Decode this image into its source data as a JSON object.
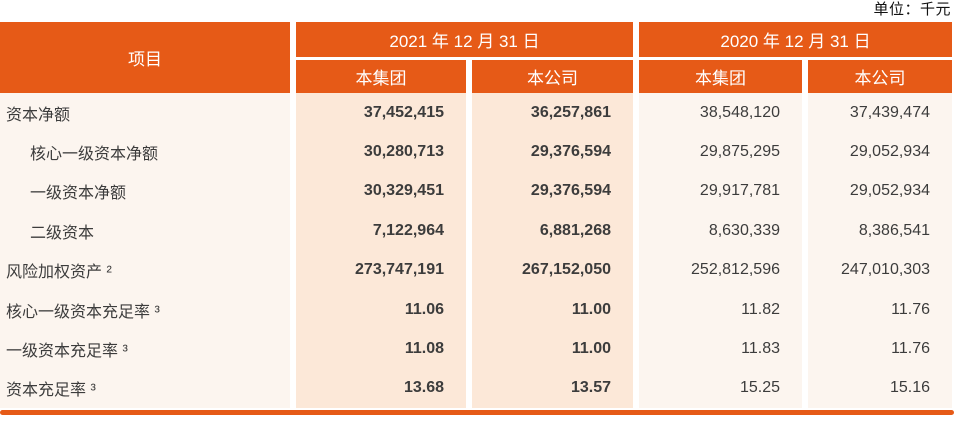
{
  "unit_label": "单位：千元",
  "table": {
    "item_header": "项目",
    "col_groups": [
      {
        "label": "2021 年 12 月 31 日",
        "sub": [
          "本集团",
          "本公司"
        ]
      },
      {
        "label": "2020 年 12 月 31 日",
        "sub": [
          "本集团",
          "本公司"
        ]
      }
    ],
    "rows": [
      {
        "label": "资本净额",
        "values": [
          "37,452,415",
          "36,257,861",
          "38,548,120",
          "37,439,474"
        ]
      },
      {
        "label": "核心一级资本净额",
        "values": [
          "30,280,713",
          "29,376,594",
          "29,875,295",
          "29,052,934"
        ]
      },
      {
        "label": "一级资本净额",
        "values": [
          "30,329,451",
          "29,376,594",
          "29,917,781",
          "29,052,934"
        ]
      },
      {
        "label": "二级资本",
        "values": [
          "7,122,964",
          "6,881,268",
          "8,630,339",
          "8,386,541"
        ]
      },
      {
        "label": "风险加权资产 ²",
        "values": [
          "273,747,191",
          "267,152,050",
          "252,812,596",
          "247,010,303"
        ]
      },
      {
        "label": "核心一级资本充足率 ³",
        "values": [
          "11.06",
          "11.00",
          "11.82",
          "11.76"
        ]
      },
      {
        "label": "一级资本充足率 ³",
        "values": [
          "11.08",
          "11.00",
          "11.83",
          "11.76"
        ]
      },
      {
        "label": "资本充足率 ³",
        "values": [
          "13.68",
          "13.57",
          "15.25",
          "15.16"
        ]
      }
    ],
    "colors": {
      "header_orange": "#E65A17",
      "col_2021_bg": "#FCE8D8",
      "col_2020_bg": "#FCF5EF",
      "bottom_rule": "#E65A17"
    }
  }
}
